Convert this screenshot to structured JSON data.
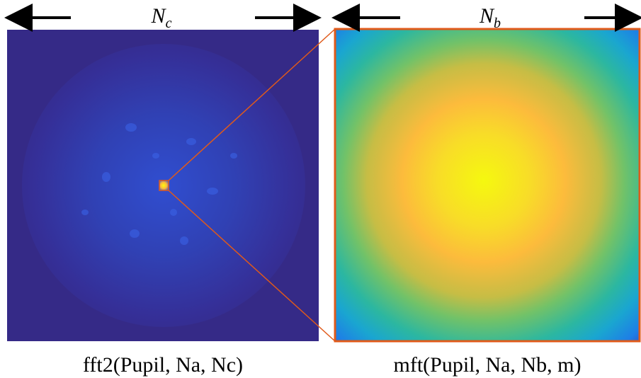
{
  "left_panel": {
    "dimension": {
      "symbol": "N",
      "subscript": "c"
    },
    "caption": "fft2(Pupil, Na, Nc)"
  },
  "right_panel": {
    "dimension": {
      "symbol": "N",
      "subscript": "b"
    },
    "caption": "mft(Pupil, Na, Nb, m)"
  }
}
